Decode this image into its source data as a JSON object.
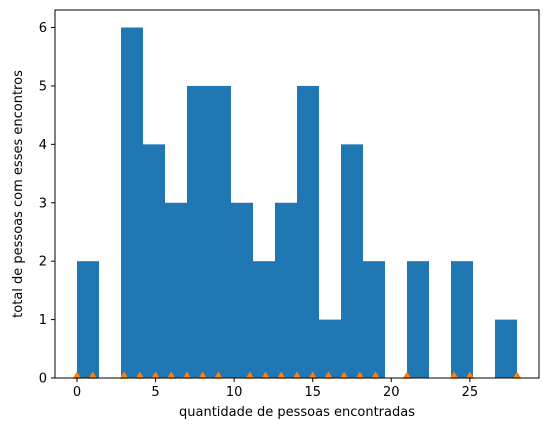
{
  "chart_data": {
    "type": "bar",
    "title": "",
    "xlabel": "quantidade de pessoas encontradas",
    "ylabel": "total de pessoas com esses encontros",
    "xlim": [
      -1.4,
      29.4
    ],
    "ylim": [
      0,
      6.3
    ],
    "xticks": [
      0,
      5,
      10,
      15,
      20,
      25
    ],
    "yticks": [
      0,
      1,
      2,
      3,
      4,
      5,
      6
    ],
    "bar_color": "#1f77b4",
    "marker_color": "#ff7f0e",
    "marker_shape": "triangle-up",
    "grid": false,
    "legend": "none",
    "bins": [
      {
        "x0": 0.0,
        "x1": 1.4,
        "count": 2
      },
      {
        "x0": 1.4,
        "x1": 2.8,
        "count": 0
      },
      {
        "x0": 2.8,
        "x1": 4.2,
        "count": 6
      },
      {
        "x0": 4.2,
        "x1": 5.6,
        "count": 4
      },
      {
        "x0": 5.6,
        "x1": 7.0,
        "count": 3
      },
      {
        "x0": 7.0,
        "x1": 8.4,
        "count": 5
      },
      {
        "x0": 8.4,
        "x1": 9.8,
        "count": 5
      },
      {
        "x0": 9.8,
        "x1": 11.2,
        "count": 3
      },
      {
        "x0": 11.2,
        "x1": 12.6,
        "count": 2
      },
      {
        "x0": 12.6,
        "x1": 14.0,
        "count": 3
      },
      {
        "x0": 14.0,
        "x1": 15.4,
        "count": 5
      },
      {
        "x0": 15.4,
        "x1": 16.8,
        "count": 1
      },
      {
        "x0": 16.8,
        "x1": 18.2,
        "count": 4
      },
      {
        "x0": 18.2,
        "x1": 19.6,
        "count": 2
      },
      {
        "x0": 19.6,
        "x1": 21.0,
        "count": 0
      },
      {
        "x0": 21.0,
        "x1": 22.4,
        "count": 2
      },
      {
        "x0": 22.4,
        "x1": 23.8,
        "count": 0
      },
      {
        "x0": 23.8,
        "x1": 25.2,
        "count": 2
      },
      {
        "x0": 25.2,
        "x1": 26.6,
        "count": 0
      },
      {
        "x0": 26.6,
        "x1": 28.0,
        "count": 1
      }
    ],
    "markers": [
      0,
      1,
      3,
      4,
      5,
      6,
      7,
      8,
      9,
      11,
      12,
      13,
      14,
      15,
      16,
      17,
      18,
      19,
      21,
      24,
      25,
      28
    ]
  }
}
